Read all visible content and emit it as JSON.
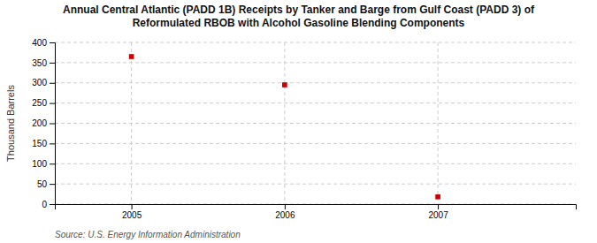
{
  "chart_data": {
    "type": "scatter",
    "title": "Annual Central Atlantic (PADD 1B) Receipts by Tanker and Barge from Gulf Coast (PADD 3) of\nReformulated RBOB with Alcohol Gasoline Blending Components",
    "ylabel": "Thousand Barrels",
    "source": "Source: U.S. Energy Information Administration",
    "x": [
      2005,
      2006,
      2007
    ],
    "values": [
      365,
      295,
      18
    ],
    "color": "#cc0000",
    "marker": "square",
    "xlim": [
      2004.5,
      2007.9
    ],
    "xticks": [
      2005,
      2006,
      2007
    ],
    "ylim": [
      0,
      400
    ],
    "yticks": [
      0,
      50,
      100,
      150,
      200,
      250,
      300,
      350,
      400
    ],
    "grid": true
  }
}
